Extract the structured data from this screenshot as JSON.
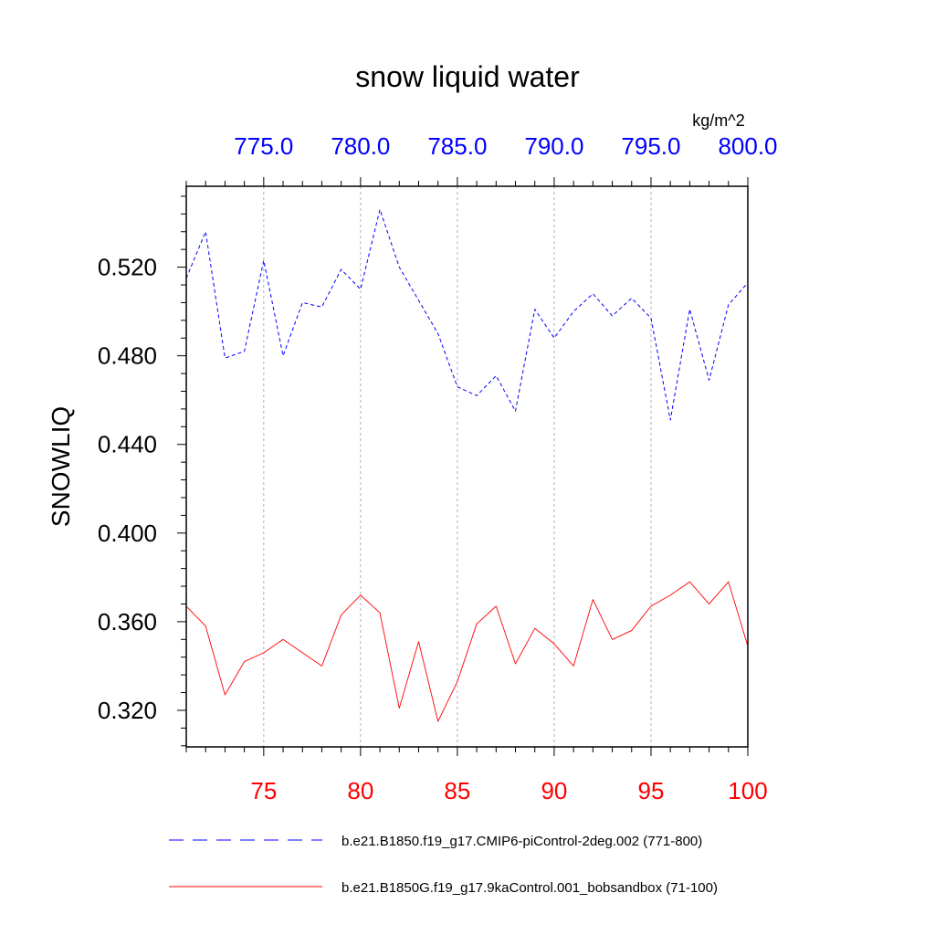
{
  "chart_data": {
    "type": "line",
    "title": "snow liquid water",
    "ylabel": "SNOWLIQ",
    "units": "kg/m^2",
    "ylim": [
      0.3035,
      0.5565
    ],
    "y_ticks": [
      "0.320",
      "0.360",
      "0.400",
      "0.440",
      "0.480",
      "0.520"
    ],
    "y_tick_values": [
      0.32,
      0.36,
      0.4,
      0.44,
      0.48,
      0.52
    ],
    "y_minor_step": 0.008,
    "bottom_axis": {
      "range": [
        71,
        100
      ],
      "ticks": [
        "75",
        "80",
        "85",
        "90",
        "95",
        "100"
      ],
      "tick_values": [
        75,
        80,
        85,
        90,
        95,
        100
      ],
      "color": "#ff0000"
    },
    "top_axis": {
      "range": [
        771,
        800
      ],
      "ticks": [
        "775.0",
        "780.0",
        "785.0",
        "790.0",
        "795.0",
        "800.0"
      ],
      "tick_values": [
        775,
        780,
        785,
        790,
        795,
        800
      ],
      "color": "#0000ff"
    },
    "series": [
      {
        "name": "b.e21.B1850.f19_g17.CMIP6-piControl-2deg.002 (771-800)",
        "axis": "top",
        "color": "#0000ff",
        "style": "dashed",
        "x": [
          771,
          772,
          773,
          774,
          775,
          776,
          777,
          778,
          779,
          780,
          781,
          782,
          783,
          784,
          785,
          786,
          787,
          788,
          789,
          790,
          791,
          792,
          793,
          794,
          795,
          796,
          797,
          798,
          799,
          800
        ],
        "values": [
          0.515,
          0.536,
          0.479,
          0.482,
          0.523,
          0.48,
          0.504,
          0.502,
          0.519,
          0.51,
          0.546,
          0.52,
          0.505,
          0.49,
          0.466,
          0.462,
          0.471,
          0.455,
          0.501,
          0.488,
          0.5,
          0.508,
          0.498,
          0.506,
          0.497,
          0.451,
          0.501,
          0.469,
          0.503,
          0.513
        ]
      },
      {
        "name": "b.e21.B1850G.f19_g17.9kaControl.001_bobsandbox (71-100)",
        "axis": "bottom",
        "color": "#ff0000",
        "style": "solid",
        "x": [
          71,
          72,
          73,
          74,
          75,
          76,
          77,
          78,
          79,
          80,
          81,
          82,
          83,
          84,
          85,
          86,
          87,
          88,
          89,
          90,
          91,
          92,
          93,
          94,
          95,
          96,
          97,
          98,
          99,
          100
        ],
        "values": [
          0.367,
          0.358,
          0.327,
          0.342,
          0.346,
          0.352,
          0.346,
          0.34,
          0.363,
          0.372,
          0.364,
          0.321,
          0.351,
          0.315,
          0.333,
          0.359,
          0.367,
          0.341,
          0.357,
          0.35,
          0.34,
          0.37,
          0.352,
          0.356,
          0.367,
          0.372,
          0.378,
          0.368,
          0.378,
          0.349
        ]
      }
    ],
    "legend_position": "bottom"
  }
}
